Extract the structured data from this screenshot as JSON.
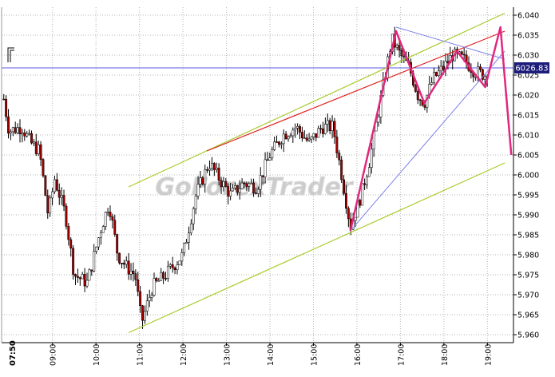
{
  "chart_data": {
    "type": "candlestick",
    "title": "",
    "xlabel": "",
    "ylabel": "",
    "watermark": "GoForexTrader",
    "session_start_label": "07:50",
    "x_tick_labels": [
      "09:00",
      "10:00",
      "11:00",
      "12:00",
      "13:00",
      "14:00",
      "15:00",
      "16:00",
      "17:00",
      "18:00",
      "19:00"
    ],
    "y_tick_labels": [
      "5.960",
      "5.965",
      "5.970",
      "5.975",
      "5.980",
      "5.985",
      "5.990",
      "5.995",
      "6.000",
      "6.005",
      "6.010",
      "6.015",
      "6.020",
      "6.025",
      "6.030",
      "6.035",
      "6.040"
    ],
    "ylim": [
      5.958,
      6.042
    ],
    "xlim_hours": [
      7.83,
      19.6
    ],
    "price_label": "6026.83",
    "price_line_value": 6.0268,
    "grid": true,
    "colors": {
      "background": "#ffffff",
      "grid": "#b4b4b4",
      "candle_up": "#ffffff",
      "candle_down": "#a00000",
      "wick": "#000000",
      "channel": "#a8cc2c",
      "resistance": "#e02020",
      "fib_lines": "#7f82e8",
      "price_line": "#5a5ae6",
      "pattern": "#e0287f",
      "watermark": "#bfbfbf",
      "price_label_bg": "#1c1c7a",
      "price_label_text": "#ffffff"
    },
    "path_points": [
      [
        7.88,
        6.019
      ],
      [
        8.0,
        6.011
      ],
      [
        8.3,
        6.012
      ],
      [
        8.5,
        6.008
      ],
      [
        8.7,
        6.006
      ],
      [
        8.9,
        5.99
      ],
      [
        9.05,
        5.999
      ],
      [
        9.3,
        5.99
      ],
      [
        9.5,
        5.975
      ],
      [
        9.8,
        5.973
      ],
      [
        10.1,
        5.986
      ],
      [
        10.3,
        5.993
      ],
      [
        10.5,
        5.98
      ],
      [
        10.7,
        5.977
      ],
      [
        10.9,
        5.975
      ],
      [
        11.05,
        5.963
      ],
      [
        11.3,
        5.972
      ],
      [
        11.6,
        5.975
      ],
      [
        12.0,
        5.98
      ],
      [
        12.3,
        5.995
      ],
      [
        12.6,
        6.003
      ],
      [
        12.9,
        5.998
      ],
      [
        13.1,
        5.995
      ],
      [
        13.4,
        5.998
      ],
      [
        13.7,
        5.997
      ],
      [
        14.0,
        6.005
      ],
      [
        14.3,
        6.01
      ],
      [
        14.6,
        6.012
      ],
      [
        14.9,
        6.008
      ],
      [
        15.2,
        6.012
      ],
      [
        15.45,
        6.012
      ],
      [
        15.65,
        6.0
      ],
      [
        15.85,
        5.987
      ],
      [
        16.1,
        5.995
      ],
      [
        16.3,
        6.004
      ],
      [
        16.6,
        6.022
      ],
      [
        16.8,
        6.034
      ],
      [
        17.0,
        6.03
      ],
      [
        17.2,
        6.027
      ],
      [
        17.4,
        6.02
      ],
      [
        17.55,
        6.018
      ],
      [
        17.75,
        6.024
      ],
      [
        18.0,
        6.027
      ],
      [
        18.2,
        6.03
      ],
      [
        18.45,
        6.029
      ],
      [
        18.7,
        6.026
      ],
      [
        18.95,
        6.025
      ],
      [
        19.05,
        6.027
      ]
    ],
    "channel_lines": [
      {
        "from": [
          10.75,
          5.997
        ],
        "to": [
          19.4,
          6.0405
        ]
      },
      {
        "from": [
          10.75,
          5.9605
        ],
        "to": [
          19.4,
          6.003
        ]
      }
    ],
    "resistance_line": {
      "from": [
        12.55,
        6.006
      ],
      "to": [
        19.4,
        6.036
      ]
    },
    "fib_lines": [
      {
        "from": [
          15.85,
          5.986
        ],
        "to": [
          19.4,
          6.031
        ]
      },
      {
        "from": [
          16.9,
          6.037
        ],
        "to": [
          19.4,
          6.029
        ]
      }
    ],
    "zigzag": [
      [
        15.85,
        5.986
      ],
      [
        16.9,
        6.036
      ],
      [
        17.55,
        6.018
      ],
      [
        18.3,
        6.031
      ],
      [
        18.95,
        6.022
      ],
      [
        19.3,
        6.037
      ],
      [
        19.55,
        6.005
      ]
    ]
  }
}
